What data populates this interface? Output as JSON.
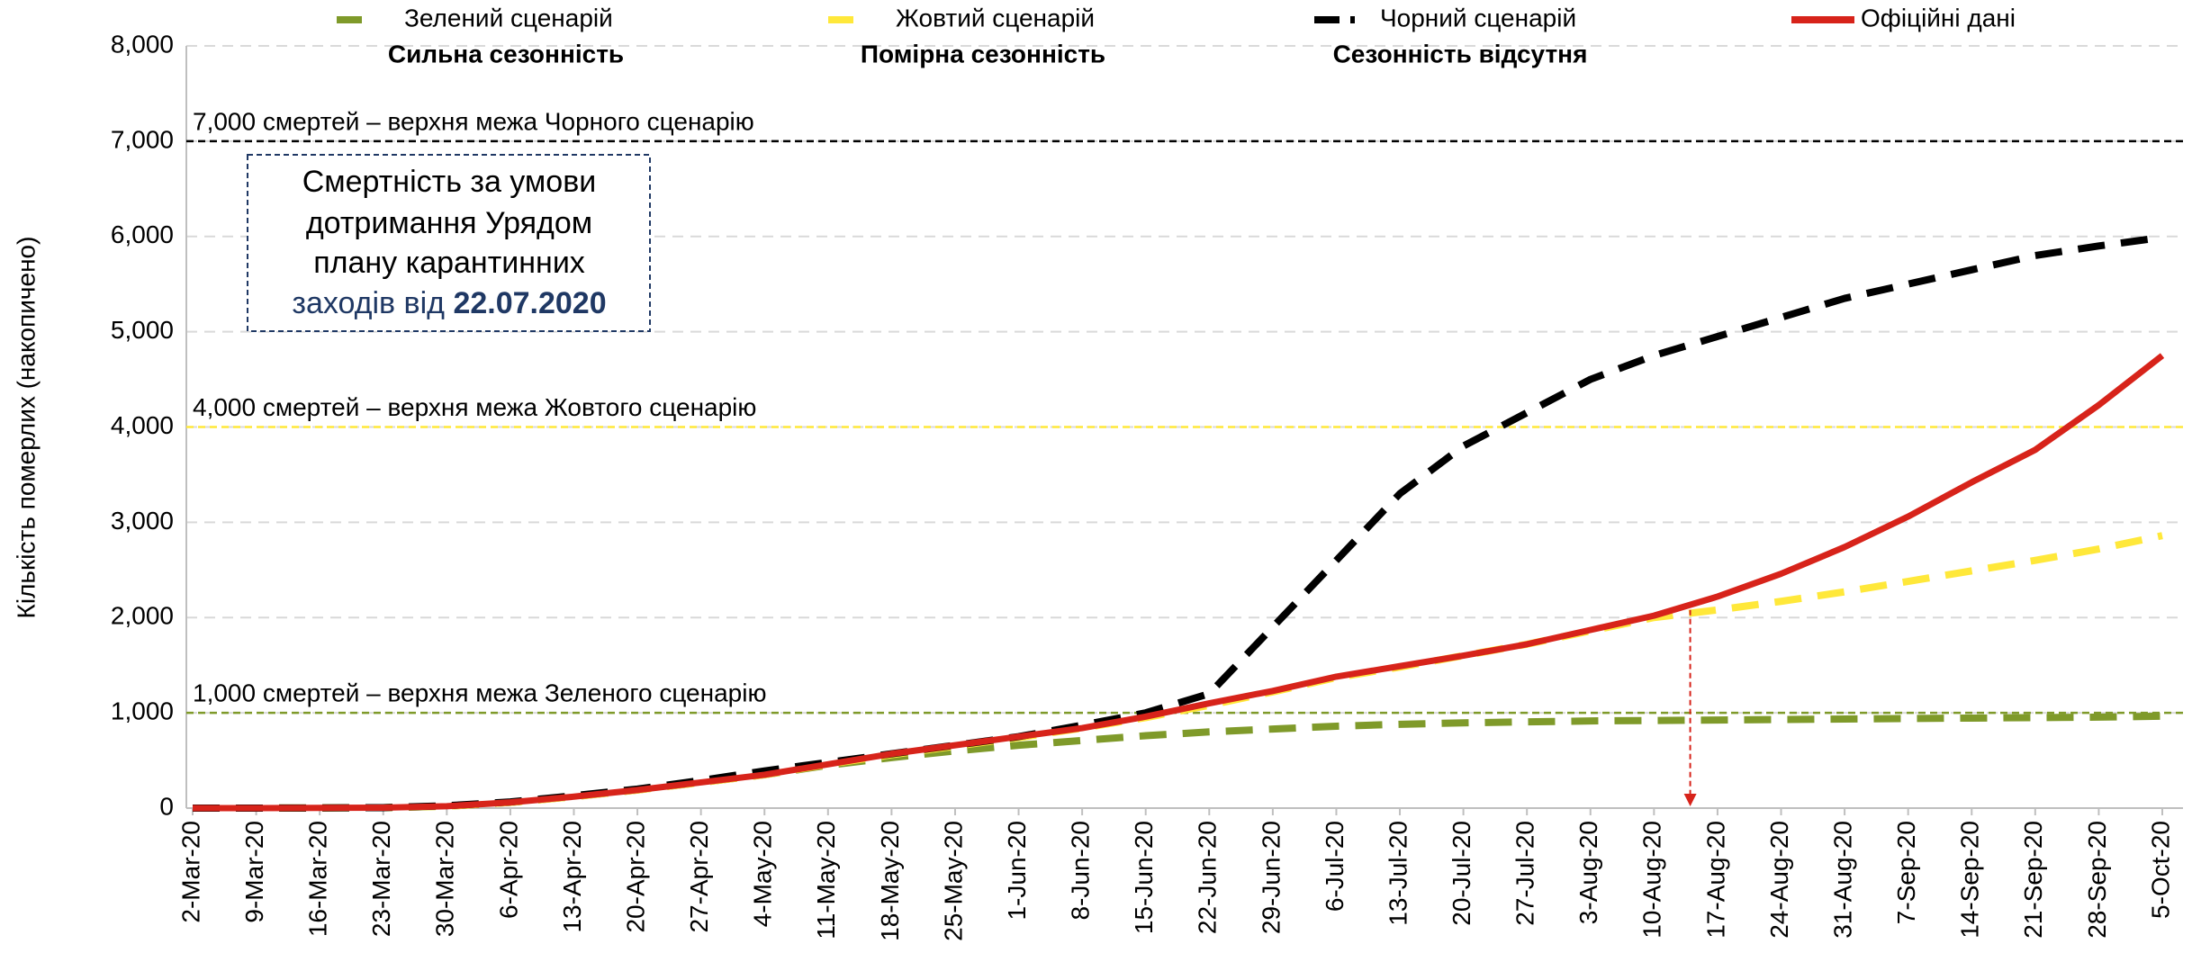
{
  "chart_data": {
    "type": "line",
    "y_label": "Кількість померлих (накопичено)",
    "categories": [
      "2-Mar-20",
      "9-Mar-20",
      "16-Mar-20",
      "23-Mar-20",
      "30-Mar-20",
      "6-Apr-20",
      "13-Apr-20",
      "20-Apr-20",
      "27-Apr-20",
      "4-May-20",
      "11-May-20",
      "18-May-20",
      "25-May-20",
      "1-Jun-20",
      "8-Jun-20",
      "15-Jun-20",
      "22-Jun-20",
      "29-Jun-20",
      "6-Jul-20",
      "13-Jul-20",
      "20-Jul-20",
      "27-Jul-20",
      "3-Aug-20",
      "10-Aug-20",
      "17-Aug-20",
      "24-Aug-20",
      "31-Aug-20",
      "7-Sep-20",
      "14-Sep-20",
      "21-Sep-20",
      "28-Sep-20",
      "5-Oct-20"
    ],
    "series": [
      {
        "name": "Зелений сценарій",
        "subtitle": "Сильна сезонність",
        "color": "#7f9a2a",
        "dashed": true,
        "values": [
          0,
          0,
          2,
          5,
          20,
          60,
          120,
          190,
          270,
          350,
          450,
          530,
          600,
          660,
          710,
          760,
          800,
          830,
          860,
          880,
          895,
          905,
          915,
          920,
          925,
          930,
          935,
          940,
          945,
          950,
          955,
          965
        ]
      },
      {
        "name": "Жовтий сценарій",
        "subtitle": "Помірна сезонність",
        "color": "#ffe83a",
        "dashed": true,
        "values": [
          0,
          0,
          2,
          5,
          20,
          60,
          120,
          190,
          270,
          350,
          460,
          560,
          650,
          740,
          840,
          950,
          1080,
          1220,
          1370,
          1480,
          1600,
          1720,
          1860,
          2000,
          2080,
          2170,
          2270,
          2380,
          2490,
          2600,
          2720,
          2860
        ]
      },
      {
        "name": "Чорний сценарій",
        "subtitle": "Сезонність відсутня",
        "color": "#000000",
        "dashed": true,
        "values": [
          0,
          0,
          2,
          5,
          25,
          65,
          130,
          200,
          290,
          390,
          480,
          570,
          660,
          750,
          870,
          1000,
          1200,
          1900,
          2600,
          3300,
          3800,
          4150,
          4500,
          4750,
          4950,
          5150,
          5350,
          5500,
          5650,
          5800,
          5900,
          5990
        ]
      },
      {
        "name": "Офіційні дані",
        "color": "#d7231a",
        "dashed": false,
        "values": [
          0,
          0,
          2,
          5,
          20,
          60,
          120,
          190,
          270,
          350,
          460,
          570,
          660,
          750,
          840,
          960,
          1100,
          1230,
          1380,
          1490,
          1600,
          1720,
          1870,
          2020,
          2220,
          2460,
          2740,
          3060,
          3420,
          3760,
          4230,
          4750
        ]
      }
    ],
    "ylim": [
      0,
      8000
    ],
    "yticks": [
      0,
      {
        "value": 1000,
        "label": "1,000"
      },
      {
        "value": 2000,
        "label": "2,000"
      },
      {
        "value": 3000,
        "label": "3,000"
      },
      {
        "value": 4000,
        "label": "4,000"
      },
      {
        "value": 5000,
        "label": "5,000"
      },
      {
        "value": 6000,
        "label": "6,000"
      },
      {
        "value": 7000,
        "label": "7,000"
      },
      {
        "value": 8000,
        "label": "8,000"
      }
    ],
    "grid": true,
    "reference_lines": [
      {
        "value": 7000,
        "label": "7,000 смертей – верхня межа Чорного сценарію",
        "color": "#000000"
      },
      {
        "value": 4000,
        "label": "4,000 смертей – верхня межа Жовтого сценарію",
        "color": "#ffe83a"
      },
      {
        "value": 1000,
        "label": "1,000 смертей – верхня межа Зеленого сценарію",
        "color": "#7f9a2a"
      }
    ],
    "box_lines": [
      "Смертність за умови",
      "дотримання Урядом",
      "плану карантинних",
      "заходів від "
    ],
    "box_bold": "22.07.2020"
  }
}
